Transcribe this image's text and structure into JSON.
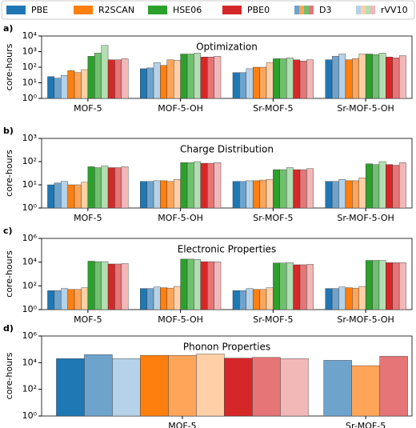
{
  "legend": [
    {
      "name": "PBE",
      "colors": [
        "#1f77b4"
      ]
    },
    {
      "name": "R2SCAN",
      "colors": [
        "#ff7f0e"
      ]
    },
    {
      "name": "HSE06",
      "colors": [
        "#2ca02c"
      ]
    },
    {
      "name": "PBE0",
      "colors": [
        "#d62728"
      ]
    },
    {
      "name": "D3",
      "colors": [
        "#6ea3cc",
        "#ffa55a",
        "#6fc06f",
        "#e57576"
      ]
    },
    {
      "name": "rVV10",
      "colors": [
        "#b5d2e8",
        "#ffd0a8",
        "#b3deb3",
        "#f2b8b8"
      ]
    }
  ],
  "chart_data": [
    {
      "type": "bar",
      "panel_label": "a)",
      "title": "Optimization",
      "ylabel": "core-hours",
      "log_y": true,
      "categories": [
        "MOF-5",
        "MOF-5-OH",
        "Sr-MOF-5",
        "Sr-MOF-5-OH"
      ],
      "ylim": [
        1,
        10000
      ],
      "yticks": [
        {
          "value": 1,
          "label": "10⁰"
        },
        {
          "value": 10,
          "label": "10¹"
        },
        {
          "value": 100,
          "label": "10²"
        },
        {
          "value": 1000,
          "label": "10³"
        },
        {
          "value": 10000,
          "label": "10⁴"
        }
      ],
      "series": [
        {
          "color": "#1f77b4",
          "values": [
            25,
            80,
            45,
            300
          ]
        },
        {
          "color": "#6ea3cc",
          "values": [
            20,
            90,
            45,
            500
          ]
        },
        {
          "color": "#b5d2e8",
          "values": [
            30,
            200,
            80,
            700
          ]
        },
        {
          "color": "#ff7f0e",
          "values": [
            60,
            130,
            100,
            300
          ]
        },
        {
          "color": "#ffa55a",
          "values": [
            45,
            300,
            100,
            350
          ]
        },
        {
          "color": "#ffd0a8",
          "values": [
            70,
            280,
            200,
            700
          ]
        },
        {
          "color": "#2ca02c",
          "values": [
            500,
            700,
            350,
            700
          ]
        },
        {
          "color": "#6fc06f",
          "values": [
            800,
            700,
            350,
            650
          ]
        },
        {
          "color": "#b3deb3",
          "values": [
            2500,
            800,
            400,
            800
          ]
        },
        {
          "color": "#d62728",
          "values": [
            300,
            450,
            300,
            450
          ]
        },
        {
          "color": "#e57576",
          "values": [
            300,
            450,
            250,
            400
          ]
        },
        {
          "color": "#f2b8b8",
          "values": [
            350,
            500,
            300,
            550
          ]
        }
      ]
    },
    {
      "type": "bar",
      "panel_label": "b)",
      "title": "Charge Distribution",
      "ylabel": "core-hours",
      "log_y": true,
      "categories": [
        "MOF-5",
        "MOF-5-OH",
        "Sr-MOF-5",
        "Sr-MOF-5-OH"
      ],
      "ylim": [
        1,
        1000
      ],
      "yticks": [
        {
          "value": 1,
          "label": "10⁰"
        },
        {
          "value": 10,
          "label": "10¹"
        },
        {
          "value": 100,
          "label": "10²"
        },
        {
          "value": 1000,
          "label": "10³"
        }
      ],
      "series": [
        {
          "color": "#1f77b4",
          "values": [
            10,
            14,
            14,
            14
          ]
        },
        {
          "color": "#6ea3cc",
          "values": [
            12,
            14,
            14,
            14
          ]
        },
        {
          "color": "#b5d2e8",
          "values": [
            14,
            15,
            15,
            17
          ]
        },
        {
          "color": "#ff7f0e",
          "values": [
            10,
            15,
            15,
            15
          ]
        },
        {
          "color": "#ffa55a",
          "values": [
            10,
            14,
            16,
            15
          ]
        },
        {
          "color": "#ffd0a8",
          "values": [
            13,
            17,
            17,
            20
          ]
        },
        {
          "color": "#2ca02c",
          "values": [
            60,
            90,
            45,
            80
          ]
        },
        {
          "color": "#6fc06f",
          "values": [
            55,
            90,
            45,
            75
          ]
        },
        {
          "color": "#b3deb3",
          "values": [
            65,
            100,
            55,
            100
          ]
        },
        {
          "color": "#d62728",
          "values": [
            55,
            85,
            45,
            75
          ]
        },
        {
          "color": "#e57576",
          "values": [
            55,
            85,
            45,
            70
          ]
        },
        {
          "color": "#f2b8b8",
          "values": [
            60,
            90,
            50,
            90
          ]
        }
      ]
    },
    {
      "type": "bar",
      "panel_label": "c)",
      "title": "Electronic Properties",
      "ylabel": "core-hours",
      "log_y": true,
      "categories": [
        "MOF-5",
        "MOF-5-OH",
        "Sr-MOF-5",
        "Sr-MOF-5-OH"
      ],
      "ylim": [
        1,
        1000000
      ],
      "yticks": [
        {
          "value": 1,
          "label": "10⁰"
        },
        {
          "value": 100,
          "label": "10²"
        },
        {
          "value": 10000,
          "label": "10⁴"
        },
        {
          "value": 1000000,
          "label": "10⁶"
        }
      ],
      "series": [
        {
          "color": "#1f77b4",
          "values": [
            40,
            60,
            40,
            60
          ]
        },
        {
          "color": "#6ea3cc",
          "values": [
            40,
            60,
            40,
            60
          ]
        },
        {
          "color": "#b5d2e8",
          "values": [
            60,
            80,
            60,
            80
          ]
        },
        {
          "color": "#ff7f0e",
          "values": [
            50,
            70,
            50,
            70
          ]
        },
        {
          "color": "#ffa55a",
          "values": [
            50,
            65,
            50,
            65
          ]
        },
        {
          "color": "#ffd0a8",
          "values": [
            70,
            90,
            70,
            90
          ]
        },
        {
          "color": "#2ca02c",
          "values": [
            12000,
            18000,
            8500,
            14000
          ]
        },
        {
          "color": "#6fc06f",
          "values": [
            11000,
            18000,
            8500,
            14000
          ]
        },
        {
          "color": "#b3deb3",
          "values": [
            11000,
            17000,
            9000,
            14000
          ]
        },
        {
          "color": "#d62728",
          "values": [
            7000,
            11000,
            6000,
            9000
          ]
        },
        {
          "color": "#e57576",
          "values": [
            7000,
            11000,
            6000,
            9000
          ]
        },
        {
          "color": "#f2b8b8",
          "values": [
            7500,
            10500,
            6500,
            9000
          ]
        }
      ]
    },
    {
      "type": "bar",
      "panel_label": "d)",
      "title": "Phonon Properties",
      "ylabel": "core-hours",
      "log_y": true,
      "categories": [
        "MOF-5",
        "Sr-MOF-5"
      ],
      "ylim": [
        1,
        1000000
      ],
      "yticks": [
        {
          "value": 1,
          "label": "10⁰"
        },
        {
          "value": 100,
          "label": "10²"
        },
        {
          "value": 10000,
          "label": "10⁴"
        },
        {
          "value": 1000000,
          "label": "10⁶"
        }
      ],
      "series": [
        {
          "color": "#1f77b4",
          "values": [
            20000,
            null
          ]
        },
        {
          "color": "#6ea3cc",
          "values": [
            40000,
            15000
          ]
        },
        {
          "color": "#b5d2e8",
          "values": [
            20000,
            null
          ]
        },
        {
          "color": "#ff7f0e",
          "values": [
            35000,
            null
          ]
        },
        {
          "color": "#ffa55a",
          "values": [
            35000,
            6000
          ]
        },
        {
          "color": "#ffd0a8",
          "values": [
            45000,
            null
          ]
        },
        {
          "color": "#d62728",
          "values": [
            22000,
            null
          ]
        },
        {
          "color": "#e57576",
          "values": [
            25000,
            30000
          ]
        },
        {
          "color": "#f2b8b8",
          "values": [
            20000,
            null
          ]
        }
      ]
    }
  ]
}
